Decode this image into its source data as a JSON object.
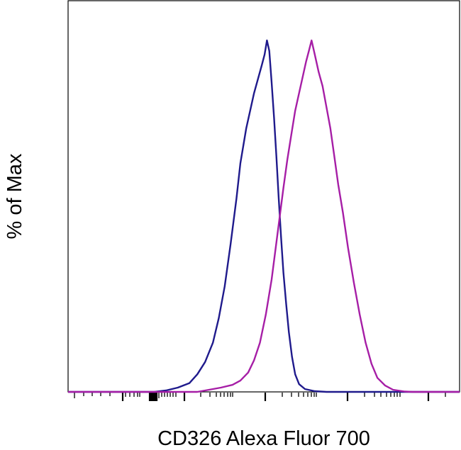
{
  "chart_data": {
    "type": "line",
    "title": "",
    "xlabel": "CD326 Alexa Fluor 700",
    "ylabel": "% of Max",
    "x_scale": "biexponential",
    "xlim": [
      0,
      100
    ],
    "ylim": [
      0,
      100
    ],
    "grid": false,
    "legend": "none",
    "series": [
      {
        "color": "#1f1a8c",
        "points": [
          [
            0,
            0
          ],
          [
            22,
            0
          ],
          [
            25,
            0.4
          ],
          [
            28,
            1.2
          ],
          [
            31,
            2.5
          ],
          [
            33,
            5
          ],
          [
            35,
            8.5
          ],
          [
            37,
            14
          ],
          [
            38.5,
            21
          ],
          [
            40,
            30
          ],
          [
            41.5,
            42
          ],
          [
            43,
            55
          ],
          [
            44,
            65
          ],
          [
            45.5,
            75
          ],
          [
            46.5,
            80
          ],
          [
            47.5,
            85
          ],
          [
            48.5,
            89
          ],
          [
            49.5,
            93
          ],
          [
            50.2,
            96
          ],
          [
            50.8,
            100
          ],
          [
            51.4,
            97
          ],
          [
            52,
            88
          ],
          [
            52.6,
            78
          ],
          [
            53.2,
            67
          ],
          [
            53.8,
            55
          ],
          [
            54.4,
            44
          ],
          [
            55,
            34
          ],
          [
            55.7,
            25
          ],
          [
            56.4,
            17
          ],
          [
            57.2,
            10
          ],
          [
            58,
            5
          ],
          [
            59,
            2.2
          ],
          [
            60.5,
            0.8
          ],
          [
            63,
            0.2
          ],
          [
            66,
            0
          ],
          [
            100,
            0
          ]
        ]
      },
      {
        "color": "#a61ea6",
        "points": [
          [
            0,
            0
          ],
          [
            33,
            0
          ],
          [
            36,
            0.6
          ],
          [
            39,
            1.2
          ],
          [
            42,
            2
          ],
          [
            44,
            3.2
          ],
          [
            46,
            5.5
          ],
          [
            47.5,
            9
          ],
          [
            49,
            14
          ],
          [
            50.5,
            22
          ],
          [
            52,
            32
          ],
          [
            53.5,
            45
          ],
          [
            55,
            58
          ],
          [
            56,
            66
          ],
          [
            57,
            73
          ],
          [
            58,
            80
          ],
          [
            59,
            85
          ],
          [
            60,
            90
          ],
          [
            60.8,
            94
          ],
          [
            61.5,
            97
          ],
          [
            62.2,
            100
          ],
          [
            63,
            96
          ],
          [
            64,
            91
          ],
          [
            65,
            87
          ],
          [
            66,
            81
          ],
          [
            67,
            75
          ],
          [
            68,
            67
          ],
          [
            69,
            59
          ],
          [
            70.2,
            51
          ],
          [
            71.5,
            41
          ],
          [
            73,
            31
          ],
          [
            74.5,
            22
          ],
          [
            76,
            14
          ],
          [
            77.5,
            8
          ],
          [
            79,
            4
          ],
          [
            81,
            1.8
          ],
          [
            83,
            0.6
          ],
          [
            86,
            0.1
          ],
          [
            88,
            0
          ],
          [
            100,
            0
          ]
        ]
      }
    ]
  }
}
